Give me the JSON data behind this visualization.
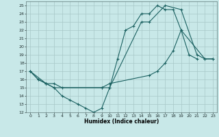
{
  "xlabel": "Humidex (Indice chaleur)",
  "background_color": "#c8e8e8",
  "grid_color": "#a8c8c8",
  "line_color": "#1a6060",
  "xlim": [
    -0.5,
    23.5
  ],
  "ylim": [
    12,
    25.5
  ],
  "xticks": [
    0,
    1,
    2,
    3,
    4,
    5,
    6,
    7,
    8,
    9,
    10,
    11,
    12,
    13,
    14,
    15,
    16,
    17,
    18,
    19,
    20,
    21,
    22,
    23
  ],
  "yticks": [
    12,
    13,
    14,
    15,
    16,
    17,
    18,
    19,
    20,
    21,
    22,
    23,
    24,
    25
  ],
  "line1_x": [
    0,
    1,
    2,
    3,
    4,
    5,
    6,
    7,
    8,
    9,
    10,
    11,
    12,
    13,
    14,
    15,
    16,
    17,
    18,
    19,
    20,
    21
  ],
  "line1_y": [
    17,
    16,
    15.5,
    15,
    14,
    13.5,
    13,
    12.5,
    12,
    12.5,
    15,
    18.5,
    22,
    22.5,
    24,
    24,
    25,
    24.5,
    24.5,
    22,
    19,
    18.5
  ],
  "line2_x": [
    0,
    1,
    2,
    3,
    4,
    9,
    10,
    15,
    16,
    17,
    18,
    19,
    22,
    23
  ],
  "line2_y": [
    17,
    16,
    15.5,
    15.5,
    15,
    15,
    15.5,
    16.5,
    17,
    18,
    19.5,
    22,
    18.5,
    18.5
  ],
  "line3_x": [
    0,
    2,
    3,
    9,
    10,
    14,
    15,
    17,
    19,
    21,
    22,
    23
  ],
  "line3_y": [
    17,
    15.5,
    15,
    15,
    15,
    23,
    23,
    25,
    24.5,
    19,
    18.5,
    18.5
  ]
}
